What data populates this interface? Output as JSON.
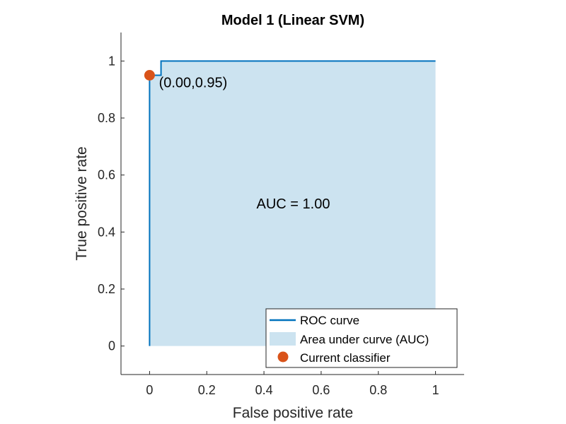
{
  "chart_data": {
    "type": "area",
    "title": "Model 1 (Linear SVM)",
    "xlabel": "False positive rate",
    "ylabel": "True positive rate",
    "xlim": [
      -0.1,
      1.1
    ],
    "ylim": [
      -0.1,
      1.1
    ],
    "xticks": [
      0,
      0.2,
      0.4,
      0.6,
      0.8,
      1
    ],
    "xtick_labels": [
      "0",
      "0.2",
      "0.4",
      "0.6",
      "0.8",
      "1"
    ],
    "yticks": [
      0,
      0.2,
      0.4,
      0.6,
      0.8,
      1
    ],
    "ytick_labels": [
      "0",
      "0.2",
      "0.4",
      "0.6",
      "0.8",
      "1"
    ],
    "grid": false,
    "legend_position": "bottom-right",
    "series": [
      {
        "name": "ROC curve",
        "kind": "line",
        "color": "#0072BD",
        "x": [
          0,
          0,
          0.04,
          0.04,
          1
        ],
        "y": [
          0,
          0.95,
          0.95,
          1,
          1
        ]
      },
      {
        "name": "Area under curve (AUC)",
        "kind": "area",
        "color": "#CCE3F0",
        "x": [
          0,
          0,
          0.04,
          0.04,
          1,
          1
        ],
        "y": [
          0,
          0.95,
          0.95,
          1,
          1,
          0
        ]
      },
      {
        "name": "Current classifier",
        "kind": "marker",
        "color": "#D95319",
        "x": [
          0
        ],
        "y": [
          0.95
        ]
      }
    ],
    "annotations": [
      {
        "text": "(0.00,0.95)",
        "x": 0.04,
        "y": 0.95
      },
      {
        "text": "AUC = 1.00",
        "x": 0.5,
        "y": 0.5
      }
    ]
  }
}
